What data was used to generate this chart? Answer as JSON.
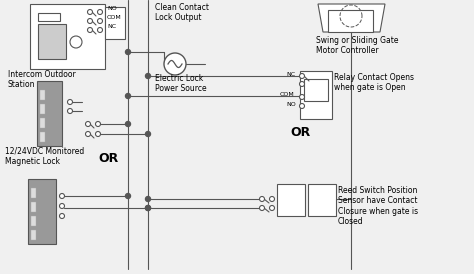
{
  "bg_color": "#f0f0f0",
  "line_color": "#555555",
  "labels": {
    "intercom": "Intercom Outdoor\nStation",
    "lock": "12/24VDC Monitored\nMagnetic Lock",
    "clean_contact": "Clean Contact\nLock Output",
    "electric_lock": "Electric Lock\nPower Source",
    "swing_gate": "Swing or Sliding Gate\nMotor Controller",
    "relay": "Relay Contact Opens\nwhen gate is Open",
    "reed": "Reed Switch Position\nSensor have Contact\nClosure when gate is\nClosed",
    "or1": "OR",
    "or2": "OR"
  },
  "terminal_labels": {
    "no": "NO",
    "com": "COM",
    "nc": "NC",
    "relay_nc": "NC",
    "relay_com": "COM",
    "relay_no": "NO"
  }
}
